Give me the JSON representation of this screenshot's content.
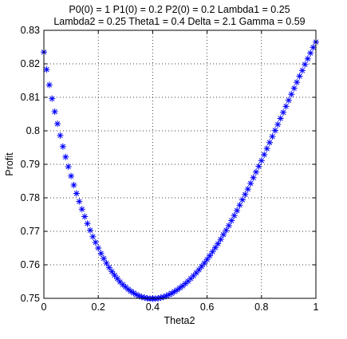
{
  "chart_data": {
    "type": "scatter",
    "title_lines": [
      "P0(0) = 1 P1(0) = 0.2 P2(0) = 0.2 Lambda1 = 0.25",
      "Lambda2 = 0.25 Theta1 = 0.4 Delta = 2.1 Gamma = 0.59"
    ],
    "xlabel": "Theta2",
    "ylabel": "Profit",
    "xlim": [
      0,
      1
    ],
    "ylim": [
      0.75,
      0.83
    ],
    "xticks": [
      0,
      0.2,
      0.4,
      0.6,
      0.8,
      1
    ],
    "xtick_labels": [
      "0",
      "0.2",
      "0.4",
      "0.6",
      "0.8",
      "1"
    ],
    "yticks": [
      0.75,
      0.76,
      0.77,
      0.78,
      0.79,
      0.8,
      0.81,
      0.82,
      0.83
    ],
    "ytick_labels": [
      "0.75",
      "0.76",
      "0.77",
      "0.78",
      "0.79",
      "0.8",
      "0.81",
      "0.82",
      "0.83"
    ],
    "grid": true,
    "marker": "*",
    "marker_color": "#0000ff",
    "x": [
      0,
      0.01,
      0.02,
      0.03,
      0.04,
      0.05,
      0.06,
      0.07,
      0.08,
      0.09,
      0.1,
      0.11,
      0.12,
      0.13,
      0.14,
      0.15,
      0.16,
      0.17,
      0.18,
      0.19,
      0.2,
      0.21,
      0.22,
      0.23,
      0.24,
      0.25,
      0.26,
      0.27,
      0.28,
      0.29,
      0.3,
      0.31,
      0.32,
      0.33,
      0.34,
      0.35,
      0.36,
      0.37,
      0.38,
      0.39,
      0.4,
      0.41,
      0.42,
      0.43,
      0.44,
      0.45,
      0.46,
      0.47,
      0.48,
      0.49,
      0.5,
      0.51,
      0.52,
      0.53,
      0.54,
      0.55,
      0.56,
      0.57,
      0.58,
      0.59,
      0.6,
      0.61,
      0.62,
      0.63,
      0.64,
      0.65,
      0.66,
      0.67,
      0.68,
      0.69,
      0.7,
      0.71,
      0.72,
      0.73,
      0.74,
      0.75,
      0.76,
      0.77,
      0.78,
      0.79,
      0.8,
      0.81,
      0.82,
      0.83,
      0.84,
      0.85,
      0.86,
      0.87,
      0.88,
      0.89,
      0.9,
      0.91,
      0.92,
      0.93,
      0.94,
      0.95,
      0.96,
      0.97,
      0.98,
      0.99,
      1
    ],
    "y": [
      0.8235,
      0.8183,
      0.8137,
      0.8096,
      0.8057,
      0.8021,
      0.7986,
      0.7953,
      0.7922,
      0.7893,
      0.7865,
      0.7838,
      0.7813,
      0.7789,
      0.7766,
      0.7744,
      0.7723,
      0.7703,
      0.7684,
      0.7667,
      0.765,
      0.7634,
      0.7619,
      0.7605,
      0.7592,
      0.758,
      0.7569,
      0.7559,
      0.7549,
      0.7541,
      0.7534,
      0.7527,
      0.7521,
      0.7516,
      0.7511,
      0.7507,
      0.7504,
      0.7502,
      0.75,
      0.7499,
      0.7499,
      0.7499,
      0.75,
      0.7502,
      0.7504,
      0.7507,
      0.7511,
      0.7515,
      0.752,
      0.7525,
      0.7531,
      0.7537,
      0.7544,
      0.7551,
      0.7559,
      0.7567,
      0.7576,
      0.7585,
      0.7595,
      0.7605,
      0.7616,
      0.7627,
      0.7639,
      0.7651,
      0.7663,
      0.7676,
      0.769,
      0.7703,
      0.7717,
      0.7732,
      0.7747,
      0.7762,
      0.7778,
      0.7794,
      0.781,
      0.7826,
      0.7843,
      0.786,
      0.7877,
      0.7894,
      0.7911,
      0.7929,
      0.7947,
      0.7965,
      0.7983,
      0.8001,
      0.8019,
      0.8037,
      0.8055,
      0.8073,
      0.8091,
      0.8109,
      0.8127,
      0.8145,
      0.8163,
      0.818,
      0.8198,
      0.8215,
      0.8232,
      0.8249,
      0.8265
    ]
  }
}
